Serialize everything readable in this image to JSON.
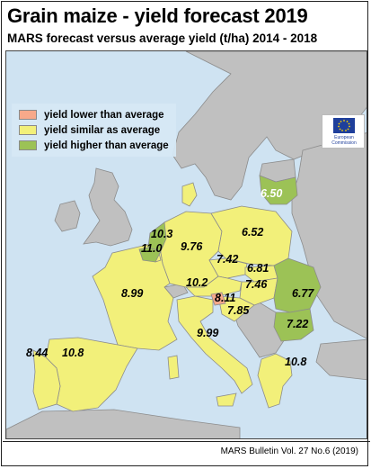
{
  "title": "Grain maize - yield forecast 2019",
  "subtitle": "MARS forecast versus average yield (t/ha) 2014 - 2018",
  "colors": {
    "lower": "#f7a98a",
    "similar": "#f2f07a",
    "higher": "#9cc256",
    "no_data": "#c0c0c0",
    "sea": "#cfe3f2"
  },
  "legend": [
    {
      "key": "lower",
      "label": "yield lower than average"
    },
    {
      "key": "similar",
      "label": "yield similar as average"
    },
    {
      "key": "higher",
      "label": "yield higher than average"
    }
  ],
  "logo": {
    "icon": "eu-flag-icon",
    "text": "European\nCommission"
  },
  "values": {
    "lithuania": "6.50",
    "belgium": "10.3",
    "netherlands": "11.0",
    "germany": "9.76",
    "poland": "6.52",
    "czechia": "7.42",
    "slovakia": "6.81",
    "hungary": "7.46",
    "austria": "10.2",
    "slovenia": "8.11",
    "croatia": "7.85",
    "romania": "6.77",
    "bulgaria": "7.22",
    "france": "8.99",
    "italy": "9.99",
    "portugal": "8.44",
    "spain": "10.8",
    "greece": "10.8"
  },
  "footer": "MARS Bulletin Vol. 27 No.6 (2019)"
}
